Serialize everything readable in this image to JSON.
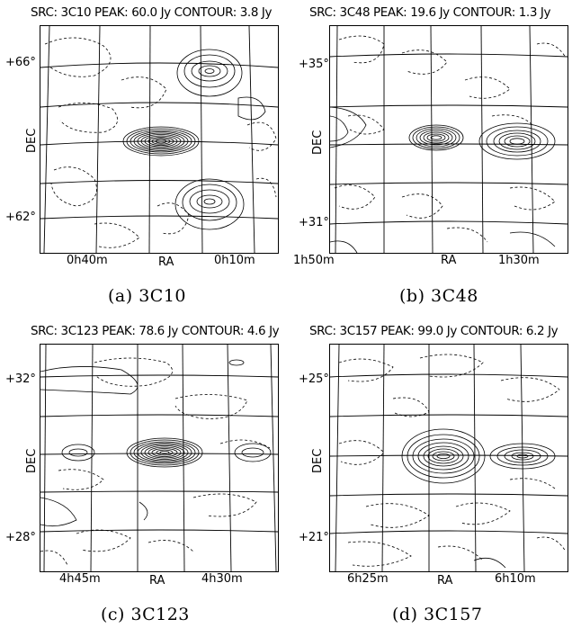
{
  "panels": [
    {
      "header": "SRC: 3C10 PEAK: 60.0 Jy CONTOUR: 3.8 Jy",
      "dec_ticks": [
        "+66°",
        "+62°"
      ],
      "ra_ticks": [
        "0h40m",
        "0h10m"
      ],
      "xlabel": "RA",
      "ylabel": "DEC",
      "caption": "(a) 3C10"
    },
    {
      "header": "SRC: 3C48 PEAK: 19.6 Jy CONTOUR: 1.3 Jy",
      "dec_ticks": [
        "+35°",
        "+31°"
      ],
      "ra_ticks": [
        "1h50m",
        "1h30m"
      ],
      "xlabel": "RA",
      "ylabel": "DEC",
      "caption": "(b) 3C48"
    },
    {
      "header": "SRC: 3C123 PEAK: 78.6 Jy CONTOUR: 4.6 Jy",
      "dec_ticks": [
        "+32°",
        "+28°"
      ],
      "ra_ticks": [
        "4h45m",
        "4h30m"
      ],
      "xlabel": "RA",
      "ylabel": "DEC",
      "caption": "(c) 3C123"
    },
    {
      "header": "SRC: 3C157 PEAK: 99.0 Jy CONTOUR: 6.2 Jy",
      "dec_ticks": [
        "+25°",
        "+21°"
      ],
      "ra_ticks": [
        "6h25m",
        "6h10m"
      ],
      "xlabel": "RA",
      "ylabel": "DEC",
      "caption": "(d) 3C157"
    }
  ]
}
